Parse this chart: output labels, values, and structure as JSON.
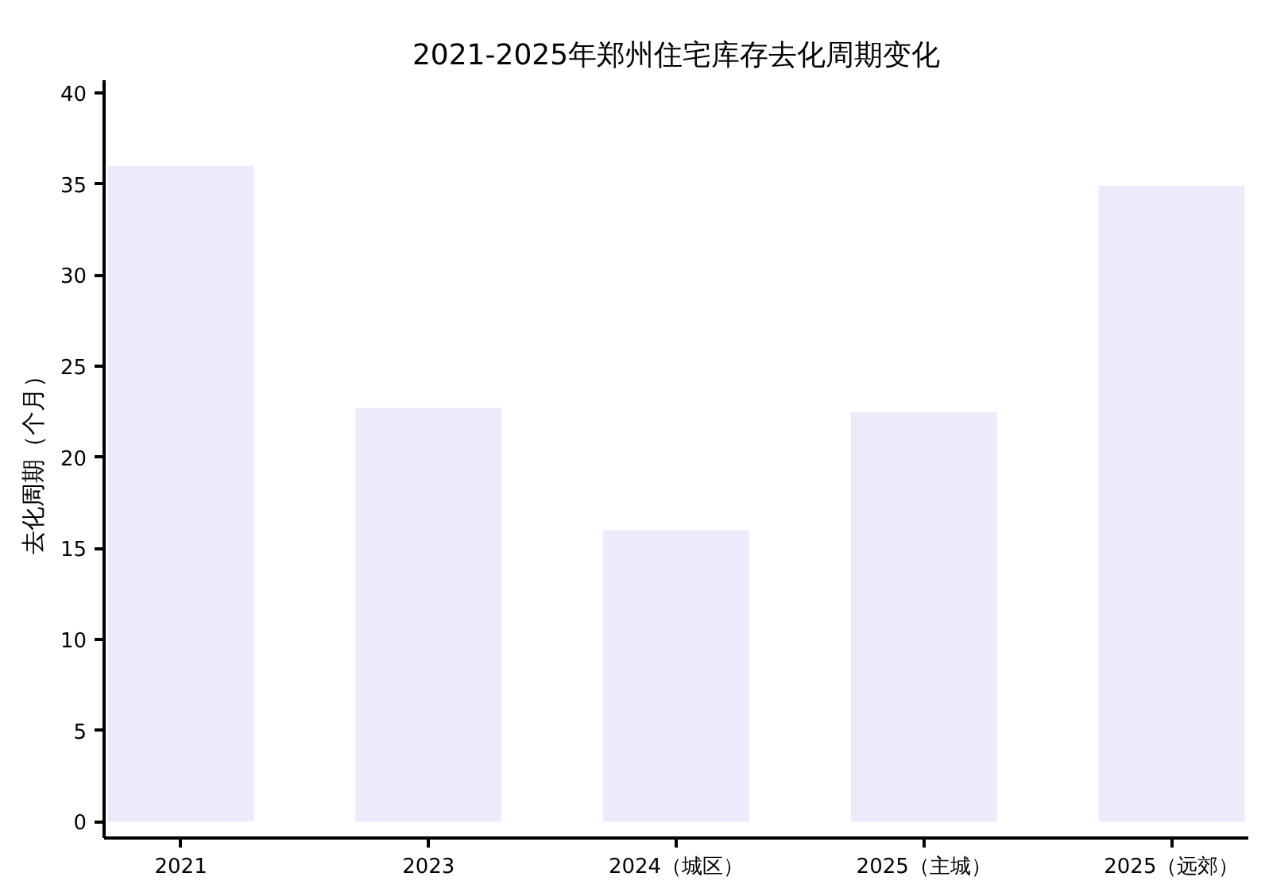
{
  "chart_data": {
    "type": "bar",
    "title": "2021-2025年郑州住宅库存去化周期变化",
    "ylabel": "去化周期（个月）",
    "categories": [
      "2021",
      "2023",
      "2024（城区）",
      "2025（主城）",
      "2025（远郊）"
    ],
    "values": [
      36.0,
      22.7,
      16.0,
      22.5,
      34.9
    ],
    "color": "#ebebfc",
    "ylim": [
      -0.9,
      40.7
    ],
    "yticks": [
      0,
      5,
      10,
      15,
      20,
      25,
      30,
      35,
      40
    ],
    "grid": false
  }
}
